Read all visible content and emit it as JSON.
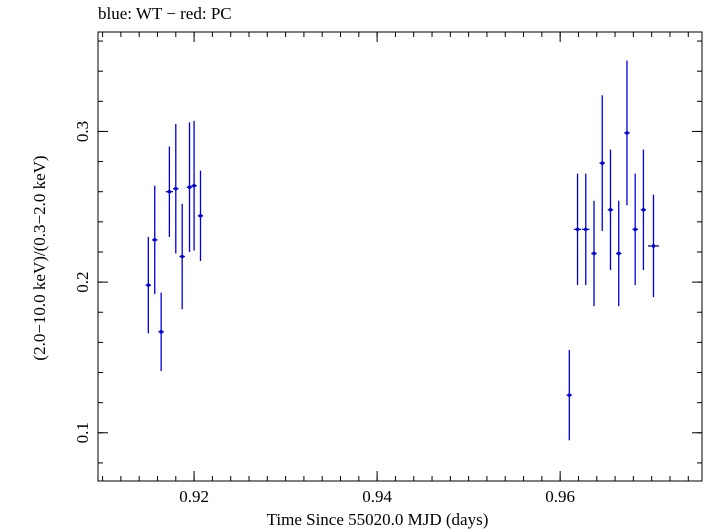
{
  "chart_data": {
    "type": "scatter",
    "title": "blue: WT − red: PC",
    "xlabel": "Time Since 55020.0 MJD (days)",
    "ylabel": "(2.0−10.0 keV)/(0.3−2.0 keV)",
    "xlim": [
      0.9095,
      0.9755
    ],
    "ylim": [
      0.068,
      0.366
    ],
    "x_ticks": [
      {
        "value": 0.92,
        "label": "0.92"
      },
      {
        "value": 0.94,
        "label": "0.94"
      },
      {
        "value": 0.96,
        "label": "0.96"
      }
    ],
    "y_ticks": [
      {
        "value": 0.1,
        "label": "0.1"
      },
      {
        "value": 0.2,
        "label": "0.2"
      },
      {
        "value": 0.3,
        "label": "0.3"
      }
    ],
    "grid": false,
    "series": [
      {
        "color": "#0000dd",
        "points": [
          {
            "x": 0.915,
            "y": 0.198,
            "yerr": 0.032,
            "xerr": 0.0003
          },
          {
            "x": 0.9157,
            "y": 0.228,
            "yerr": 0.036,
            "xerr": 0.0003
          },
          {
            "x": 0.9164,
            "y": 0.167,
            "yerr": 0.026,
            "xerr": 0.0003
          },
          {
            "x": 0.9173,
            "y": 0.26,
            "yerr": 0.03,
            "xerr": 0.0004
          },
          {
            "x": 0.918,
            "y": 0.262,
            "yerr": 0.043,
            "xerr": 0.0003
          },
          {
            "x": 0.9187,
            "y": 0.217,
            "yerr": 0.035,
            "xerr": 0.0003
          },
          {
            "x": 0.9195,
            "y": 0.263,
            "yerr": 0.043,
            "xerr": 0.0003
          },
          {
            "x": 0.92,
            "y": 0.264,
            "yerr": 0.043,
            "xerr": 0.0003
          },
          {
            "x": 0.9207,
            "y": 0.244,
            "yerr": 0.03,
            "xerr": 0.0003
          },
          {
            "x": 0.961,
            "y": 0.125,
            "yerr": 0.03,
            "xerr": 0.0003
          },
          {
            "x": 0.9619,
            "y": 0.235,
            "yerr": 0.037,
            "xerr": 0.0004
          },
          {
            "x": 0.9628,
            "y": 0.235,
            "yerr": 0.037,
            "xerr": 0.0004
          },
          {
            "x": 0.9637,
            "y": 0.219,
            "yerr": 0.035,
            "xerr": 0.0003
          },
          {
            "x": 0.9646,
            "y": 0.279,
            "yerr": 0.045,
            "xerr": 0.0003
          },
          {
            "x": 0.9655,
            "y": 0.248,
            "yerr": 0.04,
            "xerr": 0.0003
          },
          {
            "x": 0.9664,
            "y": 0.219,
            "yerr": 0.035,
            "xerr": 0.0003
          },
          {
            "x": 0.9673,
            "y": 0.299,
            "yerr": 0.048,
            "xerr": 0.0003
          },
          {
            "x": 0.9682,
            "y": 0.235,
            "yerr": 0.037,
            "xerr": 0.0003
          },
          {
            "x": 0.9691,
            "y": 0.248,
            "yerr": 0.04,
            "xerr": 0.0003
          },
          {
            "x": 0.9702,
            "y": 0.224,
            "yerr": 0.034,
            "xerr": 0.0006
          }
        ]
      }
    ]
  }
}
